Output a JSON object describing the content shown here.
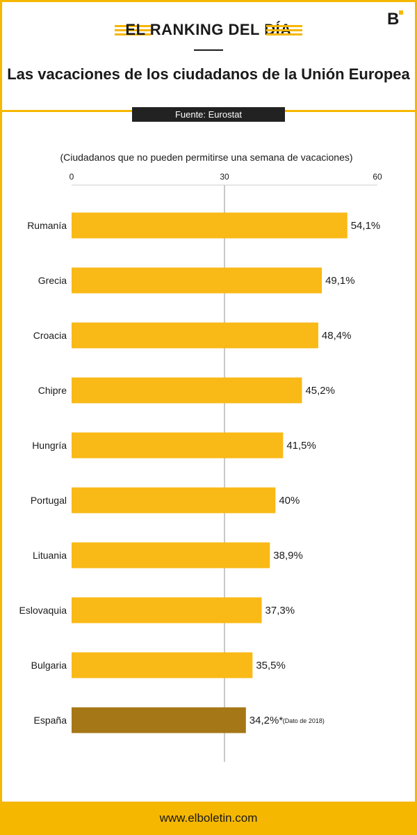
{
  "header": {
    "kicker": "EL RANKING DEL DÍA",
    "title": "Las vacaciones de los ciudadanos de la Unión Europea",
    "source": "Fuente: Eurostat",
    "logo": "B"
  },
  "footer": {
    "url": "www.elboletin.com"
  },
  "colors": {
    "accent": "#f5b700",
    "bar": "#f9b916",
    "highlight": "#a57716",
    "dark": "#222222"
  },
  "chart_data": {
    "type": "bar",
    "orientation": "horizontal",
    "subtitle": "(Ciudadanos que no pueden permitirse una semana de vacaciones)",
    "categories": [
      "Rumanía",
      "Grecia",
      "Croacia",
      "Chipre",
      "Hungría",
      "Portugal",
      "Lituania",
      "Eslovaquia",
      "Bulgaria",
      "España"
    ],
    "values": [
      54.1,
      49.1,
      48.4,
      45.2,
      41.5,
      40,
      38.9,
      37.3,
      35.5,
      34.2
    ],
    "labels": [
      "54,1%",
      "49,1%",
      "48,4%",
      "45,2%",
      "41,5%",
      "40%",
      "38,9%",
      "37,3%",
      "35,5%",
      "34,2%*"
    ],
    "highlight": "España",
    "annotation": "(Dato de 2018)",
    "xlim": [
      0,
      60
    ],
    "xticks": [
      0,
      30,
      60
    ],
    "xticklabels": [
      "0",
      "30",
      "60"
    ],
    "gridline_at": 30
  }
}
